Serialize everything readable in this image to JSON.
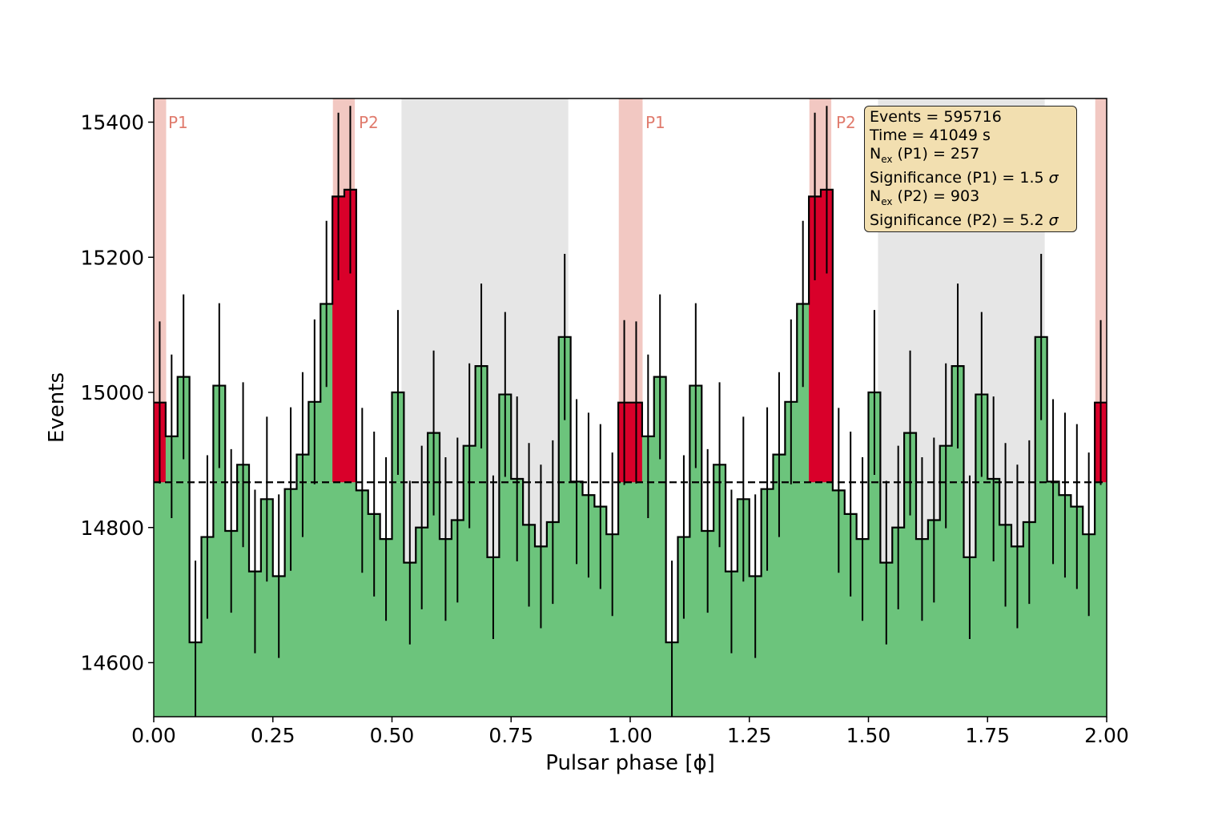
{
  "chart_data": {
    "type": "bar",
    "title": "",
    "xlabel": "Pulsar phase [ϕ]",
    "ylabel": "Events",
    "xlim": [
      0.0,
      2.0
    ],
    "ylim": [
      14520,
      15435
    ],
    "xticks": [
      "0.00",
      "0.25",
      "0.50",
      "0.75",
      "1.00",
      "1.25",
      "1.50",
      "1.75",
      "2.00"
    ],
    "yticks": [
      "14600",
      "14800",
      "15000",
      "15200",
      "15400"
    ],
    "background_level": 14867,
    "bin_width": 0.025,
    "values": [
      14985,
      14935,
      15023,
      14630,
      14786,
      15010,
      14795,
      14893,
      14735,
      14842,
      14728,
      14857,
      14908,
      14986,
      15131,
      15290,
      15300,
      14855,
      14820,
      14783,
      15000,
      14748,
      14800,
      14940,
      14783,
      14811,
      14921,
      15039,
      14756,
      14997,
      14872,
      14804,
      14772,
      14808,
      15082,
      14868,
      14848,
      14831,
      14790,
      14985
    ],
    "errors": [
      120,
      121,
      122,
      121,
      121,
      122,
      121,
      122,
      121,
      122,
      121,
      121,
      122,
      122,
      123,
      124,
      124,
      122,
      122,
      121,
      122,
      121,
      121,
      122,
      121,
      122,
      122,
      122,
      121,
      122,
      122,
      121,
      121,
      121,
      123,
      122,
      122,
      122,
      121,
      122
    ],
    "highlight_bins": [
      0,
      15,
      16,
      39
    ],
    "regions": [
      {
        "label": "P1",
        "type": "signal",
        "ranges": [
          [
            0.0,
            0.026
          ],
          [
            0.976,
            1.026
          ],
          [
            1.976,
            2.0
          ]
        ]
      },
      {
        "label": "P2",
        "type": "signal",
        "ranges": [
          [
            0.376,
            0.422
          ],
          [
            1.376,
            1.422
          ]
        ]
      },
      {
        "label": "",
        "type": "background",
        "ranges": [
          [
            0.52,
            0.87
          ],
          [
            1.52,
            1.87
          ]
        ]
      }
    ],
    "colors": {
      "bars": "#6cc47c",
      "signal_bars": "#d9002a",
      "signal_region": "#f2c8c2",
      "background_region": "#e6e6e6",
      "baseline": "#000000"
    }
  },
  "stats": {
    "events": "Events = 595716",
    "time": "Time = 41049 s",
    "nex_p1_prefix": "N",
    "nex_p1_sub": "ex",
    "nex_p1_suffix": " (P1) = 257",
    "sig_p1_prefix": "Significance (P1) = 1.5 ",
    "sig_symbol": "σ",
    "nex_p2_prefix": "N",
    "nex_p2_sub": "ex",
    "nex_p2_suffix": " (P2) = 903",
    "sig_p2_prefix": "Significance (P2) = 5.2 "
  },
  "region_labels": [
    "P1",
    "P2",
    "P1",
    "P2"
  ]
}
